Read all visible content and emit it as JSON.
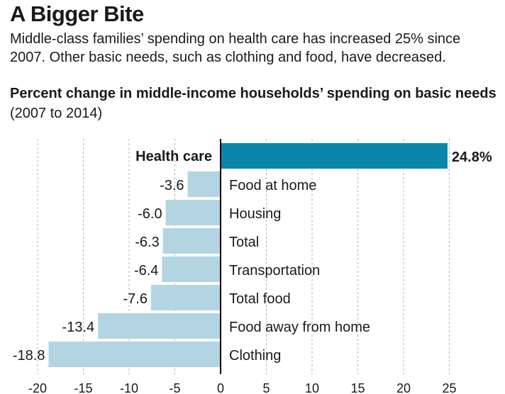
{
  "header": {
    "title": "A Bigger Bite",
    "subtitle": "Middle-class families’ spending on health care has increased 25% since 2007. Other basic needs, such as clothing and food, have decreased."
  },
  "chart_heading": {
    "bold": "Percent change in middle-income households’ spending on basic needs",
    "normal": "(2007 to 2014)"
  },
  "colors": {
    "highlight": "#0a86ad",
    "bar": "#b3d4e3",
    "grid": "#b5b5b5",
    "zero": "#000000"
  },
  "chart_data": {
    "type": "bar",
    "orientation": "horizontal",
    "title": "Percent change in middle-income households’ spending on basic needs",
    "subtitle": "(2007 to 2014)",
    "categories": [
      "Health care",
      "Food at home",
      "Housing",
      "Total",
      "Transportation",
      "Total food",
      "Food away from home",
      "Clothing"
    ],
    "values": [
      24.8,
      -3.6,
      -6.0,
      -6.3,
      -6.4,
      -7.6,
      -13.4,
      -18.8
    ],
    "value_labels": [
      "24.8%",
      "-3.6",
      "-6.0",
      "-6.3",
      "-6.4",
      "-7.6",
      "-13.4",
      "-18.8"
    ],
    "highlighted_category": "Health care",
    "xlim": [
      -20,
      25
    ],
    "xticks": [
      -20,
      -15,
      -10,
      -5,
      0,
      5,
      10,
      15,
      20,
      25
    ],
    "xtick_labels": [
      "-20",
      "-15",
      "-10",
      "-5",
      "0",
      "5",
      "10",
      "15",
      "20",
      "25"
    ],
    "grid": "vertical dashed",
    "legend": "none"
  }
}
